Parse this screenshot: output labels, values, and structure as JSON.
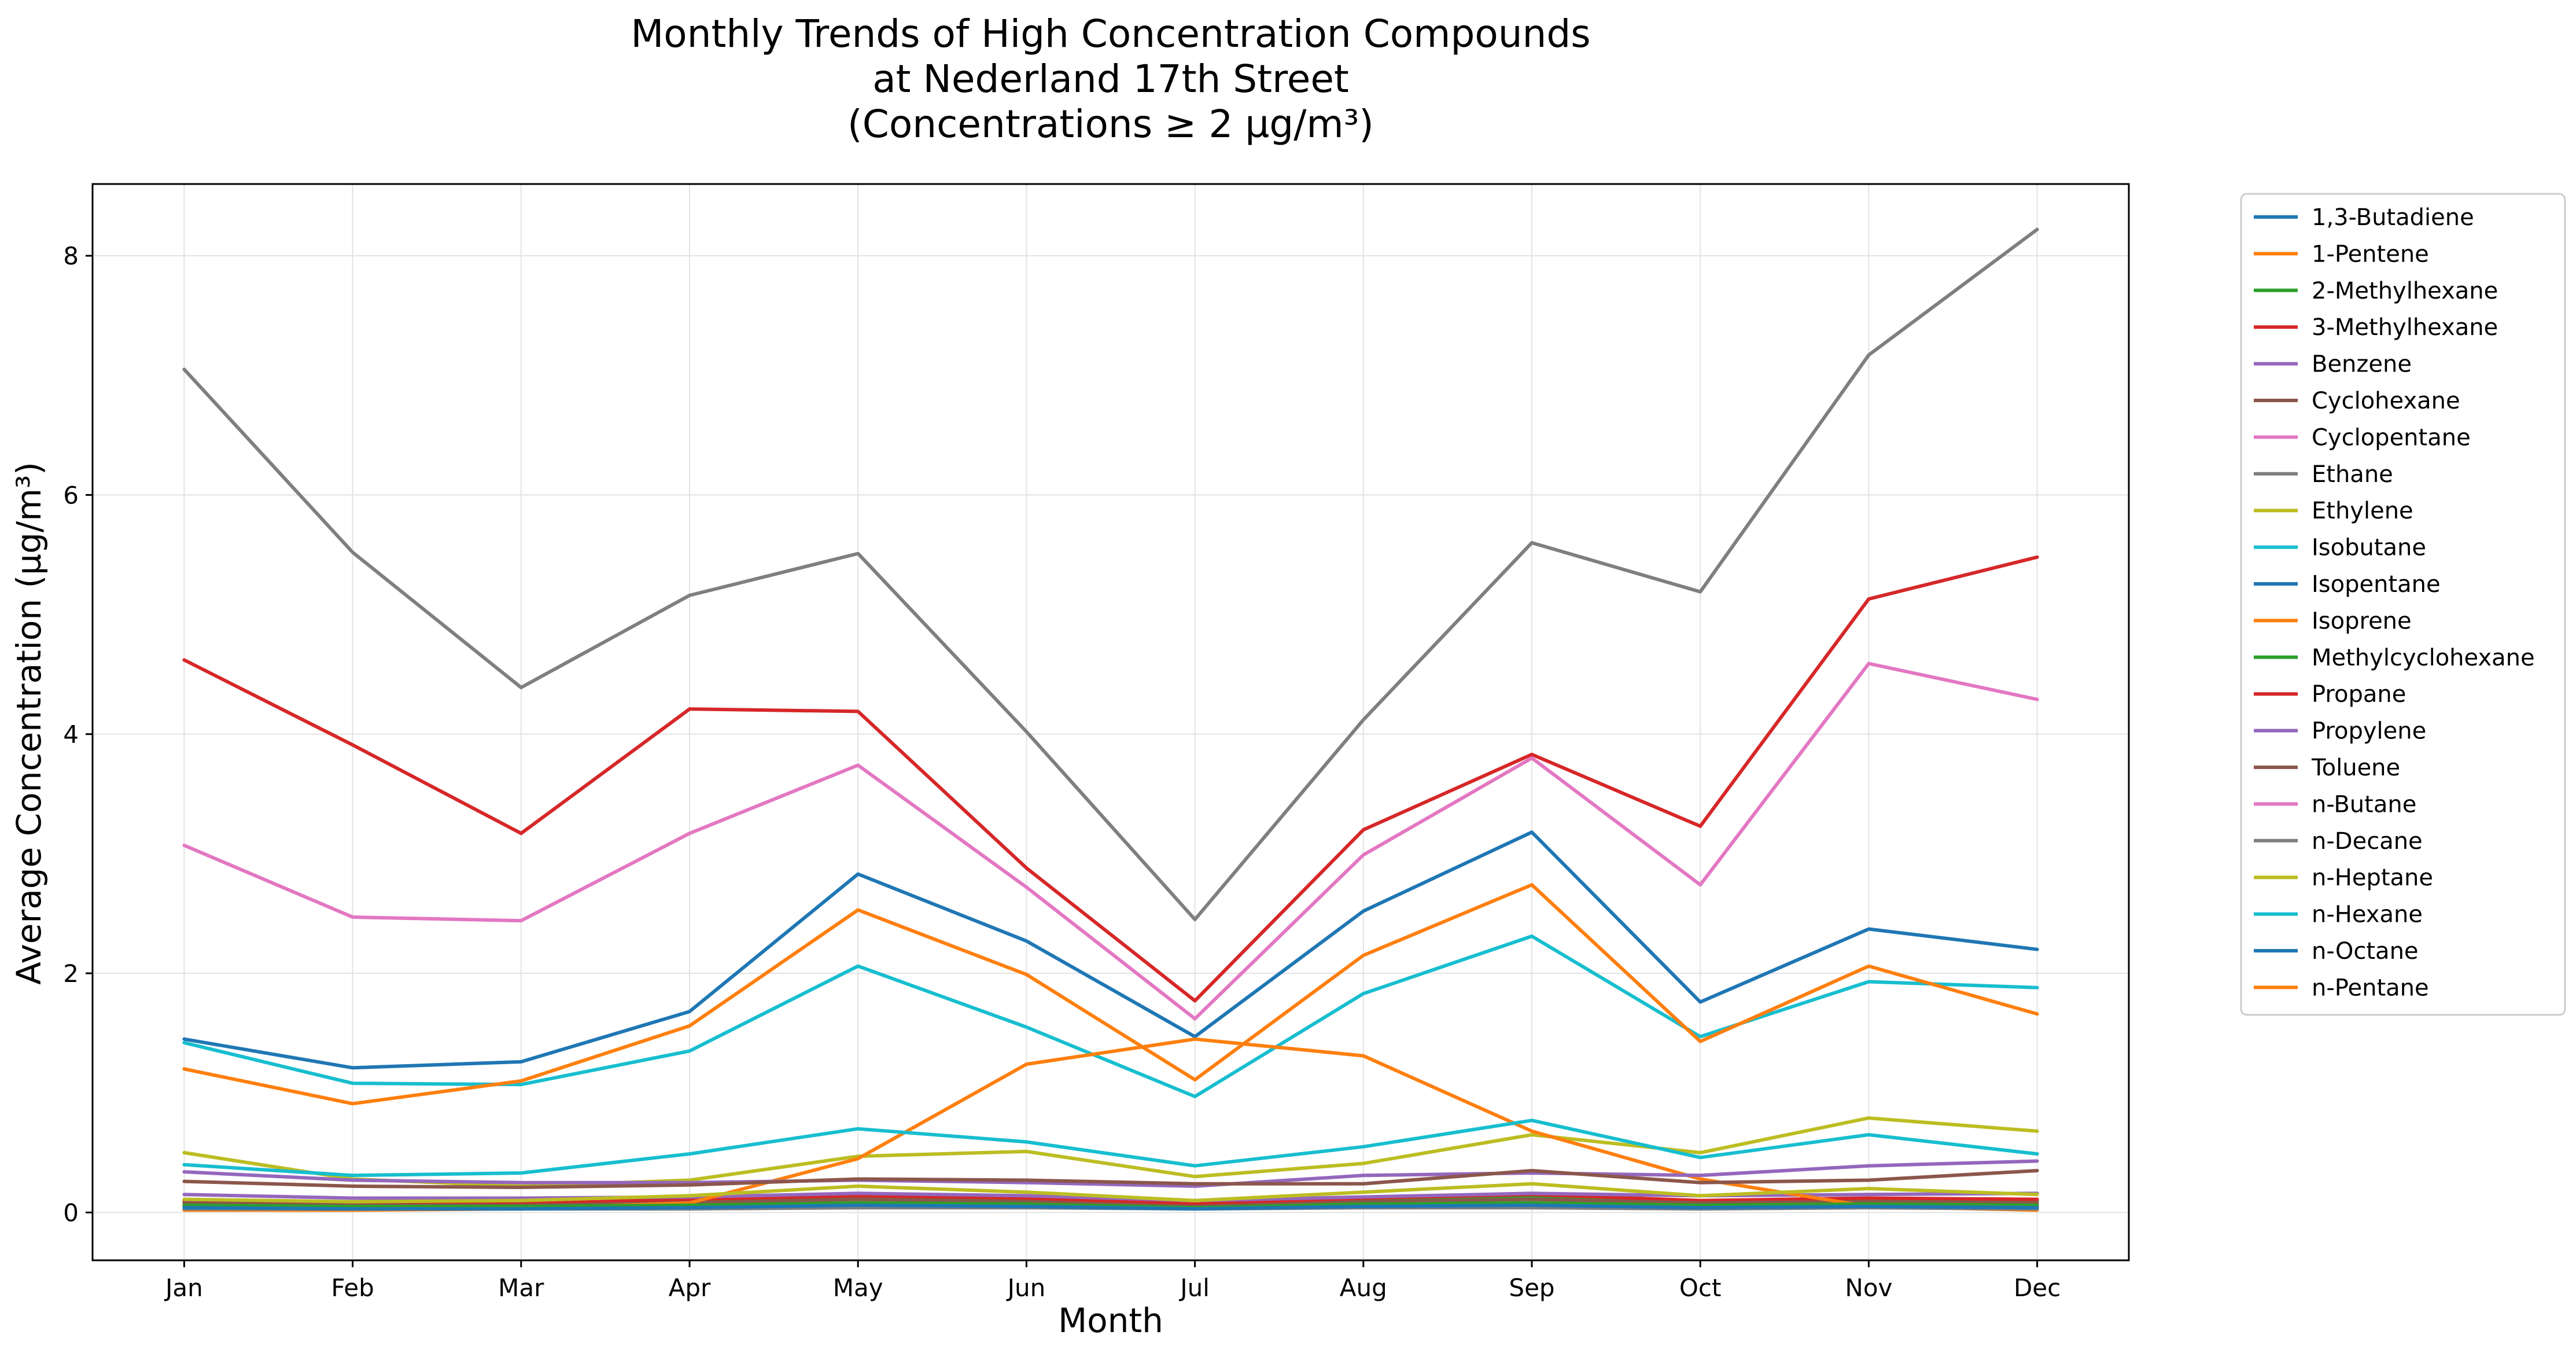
{
  "chart_data": {
    "type": "line",
    "title": [
      "Monthly Trends of High Concentration Compounds",
      "at Nederland 17th Street",
      "(Concentrations ≥ 2 µg/m³)"
    ],
    "xlabel": "Month",
    "ylabel": "Average Concentration (µg/m³)",
    "categories": [
      "Jan",
      "Feb",
      "Mar",
      "Apr",
      "May",
      "Jun",
      "Jul",
      "Aug",
      "Sep",
      "Oct",
      "Nov",
      "Dec"
    ],
    "ylim": [
      -0.4,
      8.6
    ],
    "yticks": [
      0,
      2,
      4,
      6,
      8
    ],
    "grid": true,
    "legend_position": "outside-right",
    "series": [
      {
        "name": "1,3-Butadiene",
        "color": "#1f77b4",
        "values": [
          0.05,
          0.04,
          0.04,
          0.05,
          0.06,
          0.05,
          0.04,
          0.05,
          0.06,
          0.05,
          0.05,
          0.05
        ]
      },
      {
        "name": "1-Pentene",
        "color": "#ff7f0e",
        "values": [
          0.07,
          0.05,
          0.05,
          0.06,
          0.08,
          0.07,
          0.04,
          0.06,
          0.08,
          0.06,
          0.07,
          0.06
        ]
      },
      {
        "name": "2-Methylhexane",
        "color": "#2ca02c",
        "values": [
          0.09,
          0.07,
          0.07,
          0.09,
          0.12,
          0.1,
          0.06,
          0.1,
          0.13,
          0.09,
          0.11,
          0.1
        ]
      },
      {
        "name": "3-Methylhexane",
        "color": "#d62728",
        "values": [
          0.1,
          0.08,
          0.08,
          0.11,
          0.14,
          0.12,
          0.07,
          0.12,
          0.15,
          0.1,
          0.12,
          0.11
        ]
      },
      {
        "name": "Benzene",
        "color": "#9467bd",
        "values": [
          0.15,
          0.12,
          0.12,
          0.13,
          0.16,
          0.14,
          0.1,
          0.13,
          0.16,
          0.14,
          0.15,
          0.16
        ]
      },
      {
        "name": "Cyclohexane",
        "color": "#8c564b",
        "values": [
          0.08,
          0.06,
          0.06,
          0.08,
          0.11,
          0.09,
          0.05,
          0.09,
          0.11,
          0.08,
          0.09,
          0.08
        ]
      },
      {
        "name": "Cyclopentane",
        "color": "#e377c2",
        "values": [
          0.05,
          0.04,
          0.04,
          0.05,
          0.07,
          0.06,
          0.03,
          0.06,
          0.07,
          0.05,
          0.06,
          0.05
        ]
      },
      {
        "name": "Ethane",
        "color": "#7f7f7f",
        "values": [
          7.05,
          5.52,
          4.39,
          5.16,
          5.51,
          4.02,
          2.45,
          4.12,
          5.6,
          5.19,
          7.17,
          8.22
        ]
      },
      {
        "name": "Ethylene",
        "color": "#bcbd22",
        "values": [
          0.5,
          0.28,
          0.22,
          0.27,
          0.47,
          0.51,
          0.3,
          0.41,
          0.65,
          0.5,
          0.79,
          0.68
        ]
      },
      {
        "name": "Isobutane",
        "color": "#17becf",
        "values": [
          1.42,
          1.08,
          1.07,
          1.35,
          2.06,
          1.55,
          0.97,
          1.83,
          2.31,
          1.47,
          1.93,
          1.88
        ]
      },
      {
        "name": "Isopentane",
        "color": "#1f77b4",
        "values": [
          1.45,
          1.21,
          1.26,
          1.68,
          2.83,
          2.27,
          1.47,
          2.52,
          3.18,
          1.76,
          2.37,
          2.2
        ]
      },
      {
        "name": "Isoprene",
        "color": "#ff7f0e",
        "values": [
          0.02,
          0.02,
          0.03,
          0.08,
          0.45,
          1.24,
          1.45,
          1.31,
          0.68,
          0.28,
          0.05,
          0.02
        ]
      },
      {
        "name": "Methylcyclohexane",
        "color": "#2ca02c",
        "values": [
          0.06,
          0.05,
          0.05,
          0.06,
          0.08,
          0.07,
          0.04,
          0.07,
          0.08,
          0.06,
          0.07,
          0.06
        ]
      },
      {
        "name": "Propane",
        "color": "#d62728",
        "values": [
          4.62,
          3.91,
          3.17,
          4.21,
          4.19,
          2.88,
          1.77,
          3.2,
          3.83,
          3.23,
          5.13,
          5.48
        ]
      },
      {
        "name": "Propylene",
        "color": "#9467bd",
        "values": [
          0.34,
          0.27,
          0.25,
          0.25,
          0.27,
          0.25,
          0.22,
          0.31,
          0.33,
          0.31,
          0.39,
          0.43
        ]
      },
      {
        "name": "Toluene",
        "color": "#8c564b",
        "values": [
          0.26,
          0.22,
          0.21,
          0.23,
          0.28,
          0.27,
          0.24,
          0.24,
          0.35,
          0.25,
          0.27,
          0.35
        ]
      },
      {
        "name": "n-Butane",
        "color": "#e377c2",
        "values": [
          3.07,
          2.47,
          2.44,
          3.17,
          3.74,
          2.72,
          1.62,
          2.99,
          3.8,
          2.74,
          4.59,
          4.29
        ]
      },
      {
        "name": "n-Decane",
        "color": "#7f7f7f",
        "values": [
          0.03,
          0.03,
          0.03,
          0.03,
          0.04,
          0.04,
          0.03,
          0.04,
          0.04,
          0.03,
          0.04,
          0.03
        ]
      },
      {
        "name": "n-Heptane",
        "color": "#bcbd22",
        "values": [
          0.11,
          0.09,
          0.1,
          0.14,
          0.22,
          0.17,
          0.1,
          0.17,
          0.24,
          0.14,
          0.2,
          0.15
        ]
      },
      {
        "name": "n-Hexane",
        "color": "#17becf",
        "values": [
          0.4,
          0.31,
          0.33,
          0.49,
          0.7,
          0.59,
          0.39,
          0.55,
          0.77,
          0.46,
          0.65,
          0.49
        ]
      },
      {
        "name": "n-Octane",
        "color": "#1f77b4",
        "values": [
          0.04,
          0.03,
          0.03,
          0.04,
          0.06,
          0.05,
          0.03,
          0.05,
          0.06,
          0.04,
          0.05,
          0.04
        ]
      },
      {
        "name": "n-Pentane",
        "color": "#ff7f0e",
        "values": [
          1.2,
          0.91,
          1.1,
          1.56,
          2.53,
          1.99,
          1.11,
          2.15,
          2.74,
          1.43,
          2.06,
          1.66
        ]
      }
    ]
  }
}
